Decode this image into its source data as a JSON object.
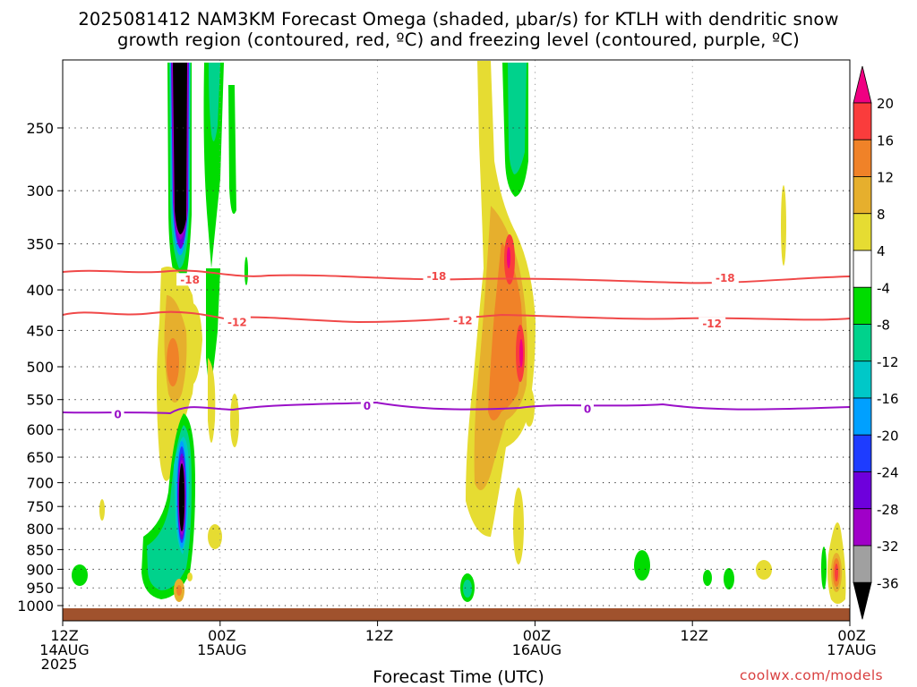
{
  "title": {
    "line1": "2025081412 NAM3KM Forecast Omega (shaded, μbar/s) for KTLH with dendritic snow",
    "line2": "growth region (contoured, red, ºC) and freezing level (contoured, purple, ºC)"
  },
  "x_axis": {
    "title": "Forecast Time (UTC)",
    "ticks": [
      {
        "hours": 0,
        "label1": "12Z",
        "label2": "14AUG",
        "label3": "2025"
      },
      {
        "hours": 12,
        "label1": "00Z",
        "label2": "15AUG",
        "label3": ""
      },
      {
        "hours": 24,
        "label1": "12Z",
        "label2": "",
        "label3": ""
      },
      {
        "hours": 36,
        "label1": "00Z",
        "label2": "16AUG",
        "label3": ""
      },
      {
        "hours": 48,
        "label1": "12Z",
        "label2": "",
        "label3": ""
      },
      {
        "hours": 60,
        "label1": "00Z",
        "label2": "17AUG",
        "label3": ""
      }
    ]
  },
  "y_axis": {
    "ticks": [
      250,
      300,
      350,
      400,
      450,
      500,
      550,
      600,
      650,
      700,
      750,
      800,
      850,
      900,
      950,
      1000
    ],
    "top": 200,
    "bottom": 1050,
    "scale": "log"
  },
  "colorbar": {
    "labels": [
      "20",
      "16",
      "12",
      "8",
      "4",
      "-4",
      "-8",
      "-12",
      "-16",
      "-20",
      "-24",
      "-28",
      "-32",
      "-36"
    ],
    "colors": {
      "lt_m36": "#000000",
      "m36_m32": "#a0a0a0",
      "m32_m28": "#a000c8",
      "m28_m24": "#6e00dc",
      "m24_m20": "#1e3cff",
      "m20_m16": "#00a0ff",
      "m16_m12": "#00c8c8",
      "m12_m8": "#00d28c",
      "m8_m4": "#00dc00",
      "m4_4": "#ffffff",
      "4_8": "#e6dc32",
      "8_12": "#e6af2d",
      "12_16": "#f08228",
      "16_20": "#fa3c3c",
      "gt_20": "#f00082"
    }
  },
  "contours": {
    "dgz_color": "#f04848",
    "freezing_color": "#9a10c8",
    "dgz_labels": [
      {
        "text": "-18",
        "hours": 9.7,
        "level": 388
      },
      {
        "text": "-18",
        "hours": 28.5,
        "level": 384
      },
      {
        "text": "-18",
        "hours": 50.5,
        "level": 386
      },
      {
        "text": "-12",
        "hours": 13.3,
        "level": 439
      },
      {
        "text": "-12",
        "hours": 30.5,
        "level": 437
      },
      {
        "text": "-12",
        "hours": 49.5,
        "level": 441
      }
    ],
    "freezing_labels": [
      {
        "text": "0",
        "hours": 4.2,
        "level": 574
      },
      {
        "text": "0",
        "hours": 23.2,
        "level": 560
      },
      {
        "text": "0",
        "hours": 40.0,
        "level": 565
      }
    ]
  },
  "ground_color": "#a0522d",
  "footer": {
    "credit": "coolwx.com/models"
  }
}
